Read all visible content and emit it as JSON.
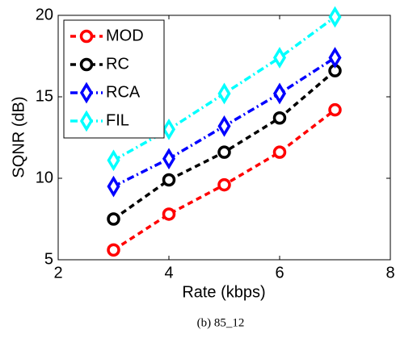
{
  "chart_data": {
    "type": "line",
    "xlabel": "Rate (kbps)",
    "ylabel": "SQNR (dB)",
    "caption": "(b) 85_12",
    "x": [
      3,
      4,
      5,
      6,
      7
    ],
    "series": [
      {
        "name": "MOD",
        "color": "#ff0000",
        "marker": "circle",
        "linestyle": "dashed",
        "values": [
          5.6,
          7.8,
          9.6,
          11.6,
          14.2
        ]
      },
      {
        "name": "RC",
        "color": "#000000",
        "marker": "circle",
        "linestyle": "dashed",
        "values": [
          7.5,
          9.9,
          11.6,
          13.7,
          16.6
        ]
      },
      {
        "name": "RCA",
        "color": "#0000ff",
        "marker": "diamond",
        "linestyle": "dashdot",
        "values": [
          9.5,
          11.2,
          13.2,
          15.2,
          17.4
        ]
      },
      {
        "name": "FIL",
        "color": "#00ffff",
        "marker": "diamond",
        "linestyle": "dashdot",
        "values": [
          11.1,
          13.0,
          15.2,
          17.4,
          19.9
        ]
      }
    ],
    "xlim": [
      2,
      8
    ],
    "xticks": [
      2,
      4,
      6,
      8
    ],
    "ylim": [
      5,
      20
    ],
    "yticks": [
      5,
      10,
      15,
      20
    ],
    "grid": false,
    "legend": "upper left"
  }
}
